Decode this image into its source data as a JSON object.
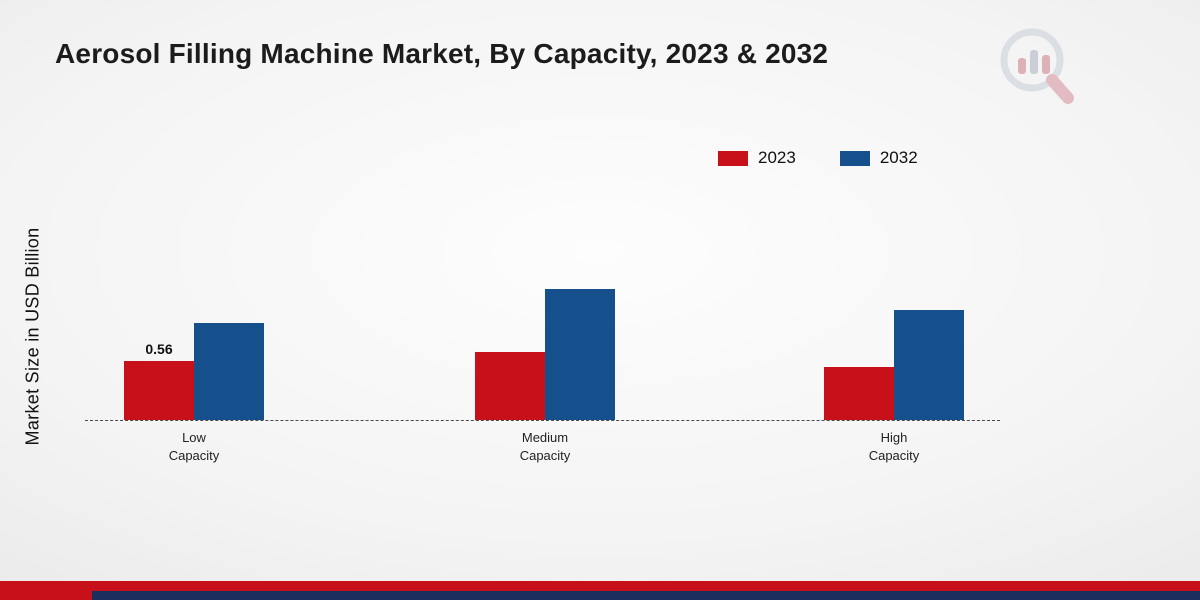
{
  "page": {
    "title": "Aerosol Filling Machine Market, By Capacity, 2023 & 2032",
    "ylabel": "Market Size in USD Billion"
  },
  "legend": {
    "items": [
      {
        "label": "2023",
        "color": "#c8101b"
      },
      {
        "label": "2032",
        "color": "#15508c"
      }
    ]
  },
  "chart_data": {
    "type": "bar",
    "title": "Aerosol Filling Machine Market, By Capacity, 2023 & 2032",
    "ylabel": "Market Size in USD Billion",
    "unit": "USD Billion",
    "categories": [
      "Low Capacity",
      "Medium Capacity",
      "High Capacity"
    ],
    "category_lines": [
      [
        "Low",
        "Capacity"
      ],
      [
        "Medium",
        "Capacity"
      ],
      [
        "High",
        "Capacity"
      ]
    ],
    "series": [
      {
        "name": "2023",
        "color": "#c8101b",
        "values": [
          0.56,
          0.65,
          0.5
        ],
        "labels": [
          "0.56",
          "",
          ""
        ]
      },
      {
        "name": "2032",
        "color": "#15508c",
        "values": [
          0.92,
          1.25,
          1.05
        ],
        "labels": [
          "",
          "",
          ""
        ]
      }
    ],
    "ylim": [
      0,
      1.4
    ],
    "grid": false,
    "baseline_style": "dashed",
    "legend_position": "top-right"
  },
  "footer": {
    "red_stripe_color": "#c8101b",
    "navy_stripe_color": "#1b2f5e"
  }
}
